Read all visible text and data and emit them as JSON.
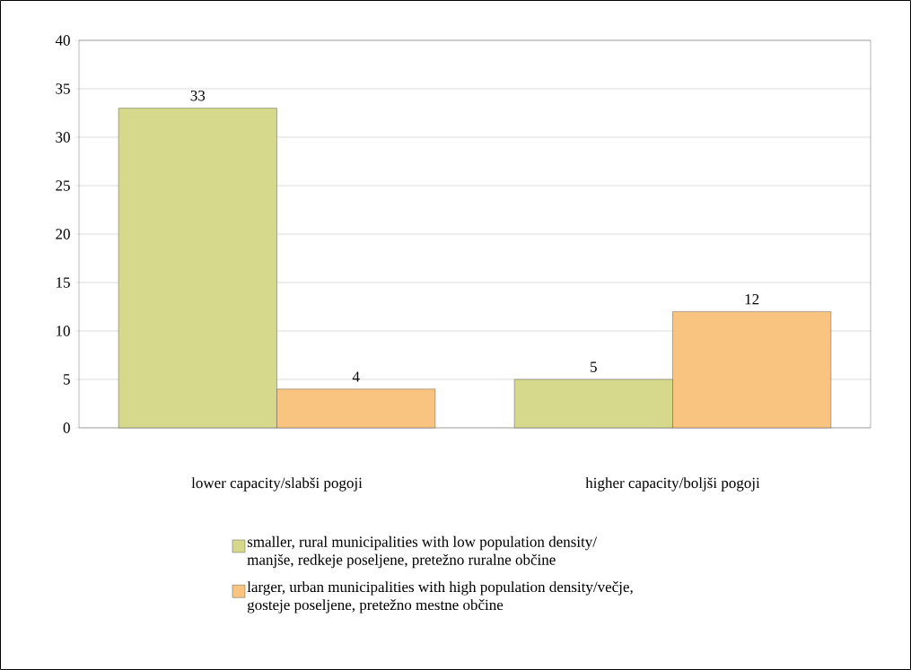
{
  "chart_data": {
    "type": "bar",
    "categories": [
      "lower capacity/slabši pogoji",
      "higher capacity/boljši pogoji"
    ],
    "series": [
      {
        "name": "smaller, rural municipalities with low population density/manjše, redkeje poseljene, pretežno ruralne občine",
        "color": "#d6d98c",
        "values": [
          33,
          5
        ]
      },
      {
        "name": "larger, urban municipalities with high population density/večje, gosteje poseljene, pretežno mestne občine",
        "color": "#f9c47f",
        "values": [
          4,
          12
        ]
      }
    ],
    "ylim": [
      0,
      40
    ],
    "yticks": [
      0,
      5,
      10,
      15,
      20,
      25,
      30,
      35,
      40
    ],
    "grid": "y",
    "legend": "bottom",
    "data_labels": true
  }
}
